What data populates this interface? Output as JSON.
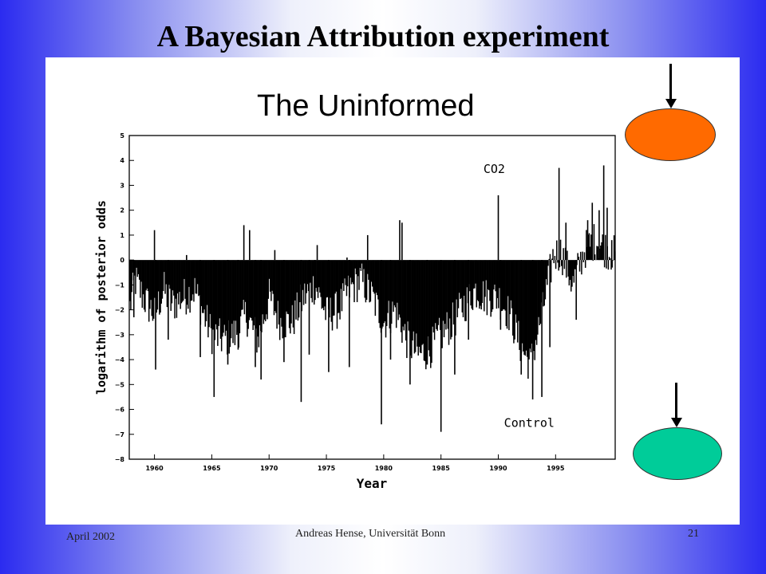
{
  "slide": {
    "title": "A Bayesian Attribution experiment",
    "subtitle": "The Uninformed"
  },
  "footer": {
    "date": "April 2002",
    "author": "Andreas Hense, Universität Bonn",
    "page": "21"
  },
  "colors": {
    "upper_oval": "#ff6a00",
    "lower_oval": "#00cc99",
    "bars": "#000000"
  },
  "chart_data": {
    "type": "bar",
    "title": "",
    "xlabel": "Year",
    "ylabel": "logarithm of posterior odds",
    "xlim": [
      1957.8,
      2000.2
    ],
    "ylim": [
      -8,
      5
    ],
    "yticks": [
      "5",
      "4",
      "3",
      "2",
      "1",
      "0",
      "−1",
      "−2",
      "−3",
      "−4",
      "−5",
      "−6",
      "−7",
      "−8"
    ],
    "xticks": [
      "1960",
      "1965",
      "1970",
      "1975",
      "1980",
      "1985",
      "1990",
      "1995"
    ],
    "annotations": [
      {
        "text": "CO2",
        "x": 1988.7,
        "y": 3.5
      },
      {
        "text": "Control",
        "x": 1990.5,
        "y": -6.7
      }
    ],
    "anchors": [
      {
        "x": 1957.8,
        "y": -2.0
      },
      {
        "x": 1958.3,
        "y": -0.8
      },
      {
        "x": 1959.0,
        "y": -1.5
      },
      {
        "x": 1960.0,
        "y": -2.2
      },
      {
        "x": 1960.8,
        "y": -1.2
      },
      {
        "x": 1961.5,
        "y": -1.8
      },
      {
        "x": 1962.5,
        "y": -1.5
      },
      {
        "x": 1963.5,
        "y": -1.2
      },
      {
        "x": 1964.3,
        "y": -2.2
      },
      {
        "x": 1965.0,
        "y": -3.0
      },
      {
        "x": 1966.0,
        "y": -3.2
      },
      {
        "x": 1967.0,
        "y": -3.0
      },
      {
        "x": 1968.0,
        "y": -2.2
      },
      {
        "x": 1969.0,
        "y": -3.2
      },
      {
        "x": 1970.0,
        "y": -1.5
      },
      {
        "x": 1971.0,
        "y": -2.5
      },
      {
        "x": 1972.0,
        "y": -2.5
      },
      {
        "x": 1973.0,
        "y": -1.5
      },
      {
        "x": 1974.0,
        "y": -1.0
      },
      {
        "x": 1975.0,
        "y": -2.2
      },
      {
        "x": 1976.0,
        "y": -2.0
      },
      {
        "x": 1977.0,
        "y": -1.2
      },
      {
        "x": 1978.0,
        "y": -0.8
      },
      {
        "x": 1979.0,
        "y": -1.5
      },
      {
        "x": 1980.0,
        "y": -2.5
      },
      {
        "x": 1981.0,
        "y": -2.0
      },
      {
        "x": 1982.0,
        "y": -3.2
      },
      {
        "x": 1983.0,
        "y": -3.8
      },
      {
        "x": 1984.0,
        "y": -3.6
      },
      {
        "x": 1985.0,
        "y": -3.0
      },
      {
        "x": 1986.0,
        "y": -2.5
      },
      {
        "x": 1987.0,
        "y": -1.8
      },
      {
        "x": 1988.0,
        "y": -1.2
      },
      {
        "x": 1989.0,
        "y": -1.5
      },
      {
        "x": 1990.0,
        "y": -1.5
      },
      {
        "x": 1991.0,
        "y": -2.2
      },
      {
        "x": 1992.0,
        "y": -3.5
      },
      {
        "x": 1992.8,
        "y": -4.2
      },
      {
        "x": 1993.5,
        "y": -2.8
      },
      {
        "x": 1994.3,
        "y": -1.0
      },
      {
        "x": 1994.8,
        "y": 0.2
      },
      {
        "x": 1995.5,
        "y": 0.3
      },
      {
        "x": 1996.5,
        "y": -1.0
      },
      {
        "x": 1997.5,
        "y": 0.4
      },
      {
        "x": 1998.5,
        "y": 0.8
      },
      {
        "x": 1999.5,
        "y": 0.4
      },
      {
        "x": 2000.2,
        "y": 0.2
      }
    ],
    "spikes": [
      {
        "x": 1958.2,
        "y": -2.3
      },
      {
        "x": 1960.0,
        "y": 1.2
      },
      {
        "x": 1960.1,
        "y": -4.4
      },
      {
        "x": 1961.2,
        "y": -3.2
      },
      {
        "x": 1962.8,
        "y": 0.2
      },
      {
        "x": 1964.0,
        "y": -3.9
      },
      {
        "x": 1965.2,
        "y": -5.5
      },
      {
        "x": 1966.4,
        "y": -4.2
      },
      {
        "x": 1967.3,
        "y": -3.6
      },
      {
        "x": 1967.8,
        "y": 1.4
      },
      {
        "x": 1968.3,
        "y": 1.2
      },
      {
        "x": 1968.8,
        "y": -4.3
      },
      {
        "x": 1969.3,
        "y": -4.8
      },
      {
        "x": 1970.5,
        "y": 0.4
      },
      {
        "x": 1971.3,
        "y": -4.1
      },
      {
        "x": 1972.8,
        "y": -5.7
      },
      {
        "x": 1973.5,
        "y": -3.8
      },
      {
        "x": 1974.0,
        "y": -0.7
      },
      {
        "x": 1974.2,
        "y": 0.6
      },
      {
        "x": 1975.2,
        "y": -4.5
      },
      {
        "x": 1976.8,
        "y": 0.1
      },
      {
        "x": 1977.0,
        "y": -4.3
      },
      {
        "x": 1978.6,
        "y": 1.0
      },
      {
        "x": 1979.8,
        "y": -6.6
      },
      {
        "x": 1980.6,
        "y": -4.0
      },
      {
        "x": 1981.4,
        "y": 1.6
      },
      {
        "x": 1981.6,
        "y": 1.5
      },
      {
        "x": 1982.3,
        "y": -5.0
      },
      {
        "x": 1983.8,
        "y": -4.2
      },
      {
        "x": 1985.0,
        "y": -6.9
      },
      {
        "x": 1986.2,
        "y": -4.6
      },
      {
        "x": 1987.4,
        "y": -3.2
      },
      {
        "x": 1990.0,
        "y": 2.6
      },
      {
        "x": 1990.2,
        "y": -2.8
      },
      {
        "x": 1992.0,
        "y": -4.6
      },
      {
        "x": 1993.0,
        "y": -5.6
      },
      {
        "x": 1993.8,
        "y": -5.5
      },
      {
        "x": 1994.5,
        "y": -3.5
      },
      {
        "x": 1995.3,
        "y": 3.7
      },
      {
        "x": 1995.9,
        "y": 1.5
      },
      {
        "x": 1996.8,
        "y": -2.4
      },
      {
        "x": 1997.8,
        "y": 1.6
      },
      {
        "x": 1998.2,
        "y": 2.3
      },
      {
        "x": 1998.8,
        "y": 2.0
      },
      {
        "x": 1999.2,
        "y": 3.8
      },
      {
        "x": 1999.5,
        "y": 2.1
      },
      {
        "x": 1999.9,
        "y": 0.8
      }
    ]
  }
}
